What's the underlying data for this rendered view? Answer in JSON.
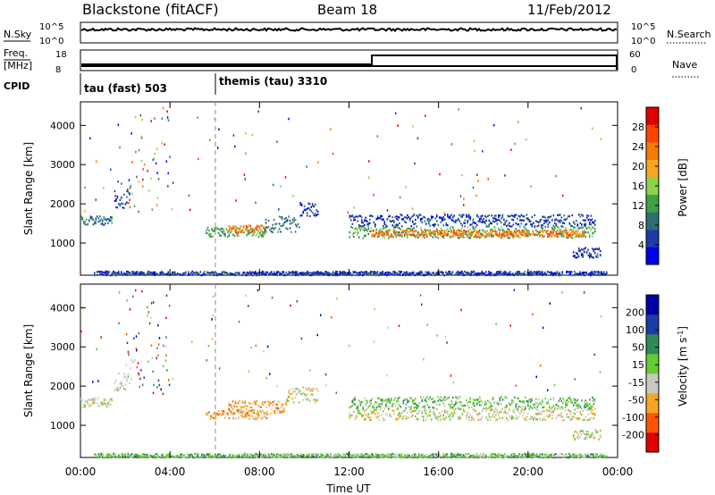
{
  "header": {
    "site": "Blackstone (fitACF)",
    "beam": "Beam 18",
    "date": "11/Feb/2012"
  },
  "strips": {
    "nsky_label": "N.Sky",
    "nsearch_label": "N.Search",
    "nsky_ticks": [
      "10^5",
      "10^0"
    ],
    "nsky_right_ticks": [
      "10^5",
      "10^0"
    ],
    "freq_label_1": "Freq.",
    "freq_label_2": "[MHz]",
    "freq_ticks": [
      "18",
      "8"
    ],
    "nave_ticks": [
      "60",
      "0"
    ],
    "nave_label": "Nave",
    "cpid_label": "CPID",
    "cpid_modes": [
      {
        "name": "tau (fast) 503",
        "start_hour": 0
      },
      {
        "name": "themis (tau) 3310",
        "start_hour": 6.0
      }
    ]
  },
  "colors": {
    "power": [
      "#0000ee",
      "#1e3ca8",
      "#2e6e73",
      "#3fa04a",
      "#8fd14a",
      "#f5a623",
      "#f57c00",
      "#ff4400",
      "#e00000"
    ],
    "velocity": [
      "#e00000",
      "#ff5500",
      "#f5a623",
      "#c8c8c0",
      "#66cc33",
      "#2e8b57",
      "#1e3ca8",
      "#0000aa"
    ]
  },
  "chart_data": [
    {
      "type": "heatmap",
      "name": "power",
      "xlabel": "",
      "ylabel": "Slant Range [km]",
      "xlim_hours": [
        0,
        24
      ],
      "ylim_km": [
        180,
        4600
      ],
      "yticks": [
        "4000",
        "3000",
        "2000",
        "1000"
      ],
      "colorbar_label": "Power [dB]",
      "colorbar_ticks": [
        "28",
        "24",
        "20",
        "16",
        "12",
        "8",
        "4"
      ],
      "bands": [
        {
          "t0": 0.0,
          "t1": 1.4,
          "r0": 1480,
          "r1": 1720,
          "c": 2
        },
        {
          "t0": 1.5,
          "t1": 2.2,
          "r0": 1900,
          "r1": 2350,
          "c": 1
        },
        {
          "t0": 5.6,
          "t1": 8.3,
          "r0": 1180,
          "r1": 1420,
          "c": 3
        },
        {
          "t0": 6.6,
          "t1": 8.2,
          "r0": 1280,
          "r1": 1480,
          "c": 6
        },
        {
          "t0": 8.2,
          "t1": 9.8,
          "r0": 1300,
          "r1": 1700,
          "c": 2
        },
        {
          "t0": 9.8,
          "t1": 10.6,
          "r0": 1700,
          "r1": 2050,
          "c": 1
        },
        {
          "t0": 12.0,
          "t1": 23.0,
          "r0": 1150,
          "r1": 1450,
          "c": 3
        },
        {
          "t0": 13.0,
          "t1": 22.5,
          "r0": 1180,
          "r1": 1350,
          "c": 6
        },
        {
          "t0": 12.0,
          "t1": 23.0,
          "r0": 1450,
          "r1": 1750,
          "c": 1
        },
        {
          "t0": 22.0,
          "t1": 23.2,
          "r0": 650,
          "r1": 900,
          "c": 1
        },
        {
          "t0": 0.6,
          "t1": 23.5,
          "r0": 200,
          "r1": 300,
          "c": 1
        }
      ]
    },
    {
      "type": "heatmap",
      "name": "velocity",
      "xlabel": "Time UT",
      "ylabel": "Slant Range [km]",
      "xlim_hours": [
        0,
        24
      ],
      "ylim_km": [
        180,
        4600
      ],
      "yticks": [
        "4000",
        "3000",
        "2000",
        "1000"
      ],
      "xticks": [
        "00:00",
        "04:00",
        "08:00",
        "12:00",
        "16:00",
        "20:00",
        "00:00"
      ],
      "colorbar_label": "Velocity [m s^-1]",
      "colorbar_ticks": [
        "200",
        "100",
        "50",
        "15",
        "-15",
        "-50",
        "-100",
        "-200"
      ],
      "bands": [
        {
          "t0": 0.0,
          "t1": 1.4,
          "r0": 1480,
          "r1": 1720,
          "c": 3
        },
        {
          "t0": 1.5,
          "t1": 2.2,
          "r0": 1900,
          "r1": 2350,
          "c": 3
        },
        {
          "t0": 5.6,
          "t1": 8.3,
          "r0": 1180,
          "r1": 1420,
          "c": 2
        },
        {
          "t0": 6.6,
          "t1": 9.2,
          "r0": 1300,
          "r1": 1650,
          "c": 2
        },
        {
          "t0": 9.2,
          "t1": 10.6,
          "r0": 1600,
          "r1": 2000,
          "c": 3
        },
        {
          "t0": 12.0,
          "t1": 23.0,
          "r0": 1150,
          "r1": 1450,
          "c": 3
        },
        {
          "t0": 12.0,
          "t1": 23.0,
          "r0": 1450,
          "r1": 1750,
          "c": 4
        },
        {
          "t0": 22.0,
          "t1": 23.2,
          "r0": 650,
          "r1": 900,
          "c": 3
        },
        {
          "t0": 0.6,
          "t1": 23.5,
          "r0": 200,
          "r1": 300,
          "c": 4
        }
      ]
    }
  ]
}
